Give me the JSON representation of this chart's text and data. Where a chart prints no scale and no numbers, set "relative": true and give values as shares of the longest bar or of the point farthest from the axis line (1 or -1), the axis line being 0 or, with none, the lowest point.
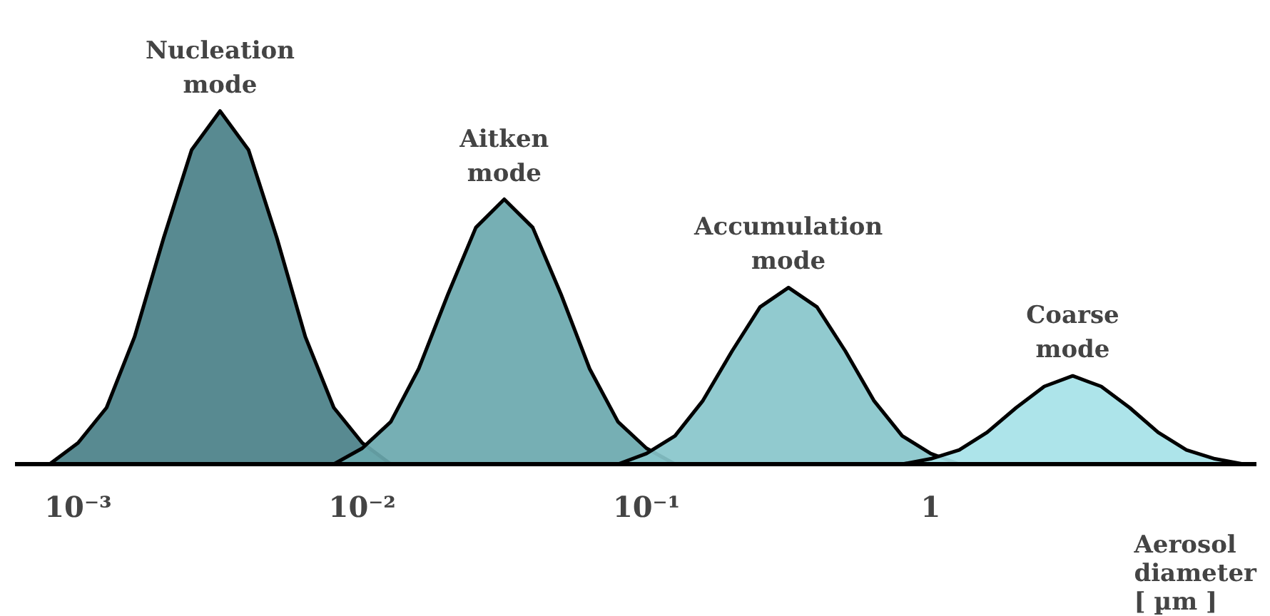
{
  "chart_data": {
    "type": "area",
    "relative": true,
    "log": "x",
    "xlabel": "Aerosol\ndiameter\n[ µm ]",
    "xlim": [
      0.0006,
      14
    ],
    "xticks": [
      {
        "value": 0.001,
        "label": "10⁻³"
      },
      {
        "value": 0.01,
        "label": "10⁻²"
      },
      {
        "value": 0.1,
        "label": "10⁻¹"
      },
      1
    ],
    "series": [
      {
        "color": "#4a8088",
        "x": [
          0.000794,
          0.001,
          0.00126,
          0.00158,
          0.002,
          0.00251,
          0.00316,
          0.00398,
          0.00501,
          0.00631,
          0.00794,
          0.01,
          0.0126
        ],
        "values": [
          0,
          0.06,
          0.16,
          0.36,
          0.64,
          0.89,
          1,
          0.89,
          0.64,
          0.36,
          0.16,
          0.06,
          0
        ]
      },
      {
        "color": "#6aa8ae",
        "x": [
          0.00794,
          0.01,
          0.0126,
          0.0158,
          0.02,
          0.0251,
          0.0316,
          0.0398,
          0.0501,
          0.0631,
          0.0794,
          0.1,
          0.126
        ],
        "values": [
          0,
          0.045,
          0.12,
          0.27,
          0.48,
          0.67,
          0.75,
          0.67,
          0.48,
          0.27,
          0.12,
          0.045,
          0
        ]
      },
      {
        "color": "#88c6cb",
        "x": [
          0.0794,
          0.1,
          0.126,
          0.158,
          0.2,
          0.251,
          0.316,
          0.398,
          0.501,
          0.631,
          0.794,
          1,
          1.26
        ],
        "values": [
          0,
          0.03,
          0.08,
          0.18,
          0.32,
          0.445,
          0.5,
          0.445,
          0.32,
          0.18,
          0.08,
          0.03,
          0
        ]
      },
      {
        "color": "#a6e2e8",
        "x": [
          0.794,
          1,
          1.26,
          1.58,
          2,
          2.51,
          3.16,
          3.98,
          5.01,
          6.31,
          7.94,
          10,
          12.6
        ],
        "values": [
          0,
          0.015,
          0.04,
          0.09,
          0.16,
          0.22,
          0.25,
          0.22,
          0.16,
          0.09,
          0.04,
          0.015,
          0
        ]
      }
    ],
    "annotations": [
      {
        "text": "Nucleation\nmode",
        "x": 0.00316,
        "y": 1
      },
      {
        "text": "Aitken\nmode",
        "x": 0.0316,
        "y": 0.75
      },
      {
        "text": "Accumulation\nmode",
        "x": 0.316,
        "y": 0.5
      },
      {
        "text": "Coarse\nmode",
        "x": 3.16,
        "y": 0.25
      }
    ]
  }
}
